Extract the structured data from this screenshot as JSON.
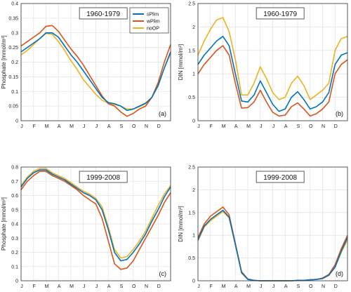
{
  "legend": {
    "entries": [
      "sPlim",
      "wPlim",
      "noOP"
    ]
  },
  "colors": {
    "sPlim": "#0072BD",
    "wPlim": "#D95319",
    "noOP": "#EDB120"
  },
  "chart_data": [
    {
      "type": "line",
      "panel_label": "(a)",
      "box_title": "1960-1979",
      "ylabel": "Phosphate [mmol/m³]",
      "ylim": [
        0,
        0.4
      ],
      "yticks": [
        "0",
        "0.05",
        "0.1",
        "0.15",
        "0.2",
        "0.25",
        "0.3",
        "0.35",
        "0.4"
      ],
      "xtick_labels": [
        "J",
        "F",
        "M",
        "A",
        "M",
        "J",
        "J",
        "A",
        "S",
        "O",
        "N",
        "D"
      ],
      "grid": true,
      "legend_position": "top-right",
      "x": [
        0,
        0.5,
        1,
        1.5,
        2,
        2.5,
        3,
        3.5,
        4,
        4.5,
        5,
        5.5,
        6,
        6.5,
        7,
        7.5,
        8,
        8.5,
        9,
        9.5,
        10,
        10.5,
        11,
        11.5,
        12
      ],
      "series": [
        {
          "name": "sPlim",
          "values": [
            0.235,
            0.25,
            0.265,
            0.28,
            0.3,
            0.3,
            0.285,
            0.255,
            0.225,
            0.2,
            0.17,
            0.14,
            0.11,
            0.08,
            0.062,
            0.058,
            0.05,
            0.035,
            0.04,
            0.05,
            0.06,
            0.08,
            0.12,
            0.18,
            0.235
          ]
        },
        {
          "name": "wPlim",
          "values": [
            0.255,
            0.27,
            0.285,
            0.3,
            0.322,
            0.325,
            0.305,
            0.275,
            0.245,
            0.22,
            0.19,
            0.155,
            0.12,
            0.085,
            0.058,
            0.05,
            0.03,
            0.015,
            0.025,
            0.04,
            0.05,
            0.08,
            0.13,
            0.2,
            0.26
          ]
        },
        {
          "name": "noOP",
          "values": [
            0.225,
            0.24,
            0.26,
            0.28,
            0.298,
            0.295,
            0.27,
            0.24,
            0.205,
            0.175,
            0.14,
            0.115,
            0.09,
            0.07,
            0.06,
            0.055,
            0.05,
            0.04,
            0.04,
            0.048,
            0.058,
            0.08,
            0.12,
            0.18,
            0.23
          ]
        }
      ]
    },
    {
      "type": "line",
      "panel_label": "(b)",
      "box_title": "1960-1979",
      "ylabel": "DIN [mmol/m³]",
      "ylim": [
        0,
        2.5
      ],
      "yticks": [
        "0",
        "0.5",
        "1",
        "1.5",
        "2",
        "2.5"
      ],
      "xtick_labels": [
        "J",
        "F",
        "M",
        "A",
        "M",
        "J",
        "J",
        "A",
        "S",
        "O",
        "N",
        "D"
      ],
      "grid": true,
      "x": [
        0,
        0.5,
        1,
        1.5,
        2,
        2.5,
        3,
        3.5,
        4,
        4.5,
        5,
        5.5,
        6,
        6.5,
        7,
        7.5,
        8,
        8.5,
        9,
        9.5,
        10,
        10.5,
        11,
        11.5,
        12
      ],
      "series": [
        {
          "name": "sPlim",
          "values": [
            1.2,
            1.4,
            1.55,
            1.7,
            1.8,
            1.6,
            1.0,
            0.42,
            0.4,
            0.55,
            0.85,
            0.6,
            0.35,
            0.2,
            0.25,
            0.5,
            0.62,
            0.45,
            0.25,
            0.3,
            0.4,
            0.6,
            1.2,
            1.4,
            1.45
          ]
        },
        {
          "name": "wPlim",
          "values": [
            1.0,
            1.2,
            1.35,
            1.5,
            1.6,
            1.4,
            0.8,
            0.27,
            0.28,
            0.4,
            0.65,
            0.4,
            0.18,
            0.1,
            0.12,
            0.3,
            0.38,
            0.25,
            0.1,
            0.15,
            0.25,
            0.4,
            1.0,
            1.2,
            1.3
          ]
        },
        {
          "name": "noOP",
          "values": [
            1.4,
            1.7,
            1.95,
            2.15,
            2.2,
            1.9,
            1.3,
            0.55,
            0.55,
            0.8,
            1.15,
            0.9,
            0.6,
            0.45,
            0.5,
            0.8,
            0.95,
            0.75,
            0.45,
            0.55,
            0.65,
            0.8,
            1.5,
            1.75,
            1.8
          ]
        }
      ]
    },
    {
      "type": "line",
      "panel_label": "(c)",
      "box_title": "1999-2008",
      "ylabel": "Phosphate [mmol/m³]",
      "ylim": [
        0,
        0.8
      ],
      "yticks": [
        "0",
        "0.1",
        "0.2",
        "0.3",
        "0.4",
        "0.5",
        "0.6",
        "0.7",
        "0.8"
      ],
      "xtick_labels": [
        "J",
        "F",
        "M",
        "A",
        "M",
        "J",
        "J",
        "A",
        "S",
        "O",
        "N",
        "D"
      ],
      "grid": true,
      "x": [
        0,
        0.5,
        1,
        1.5,
        2,
        2.5,
        3,
        3.5,
        4,
        4.5,
        5,
        5.5,
        6,
        6.5,
        7,
        7.5,
        8,
        8.5,
        9,
        9.5,
        10,
        10.5,
        11,
        11.5,
        12
      ],
      "series": [
        {
          "name": "sPlim",
          "values": [
            0.66,
            0.72,
            0.76,
            0.78,
            0.78,
            0.75,
            0.73,
            0.71,
            0.68,
            0.65,
            0.62,
            0.6,
            0.57,
            0.5,
            0.36,
            0.2,
            0.14,
            0.15,
            0.2,
            0.26,
            0.33,
            0.42,
            0.5,
            0.59,
            0.66
          ]
        },
        {
          "name": "wPlim",
          "values": [
            0.64,
            0.7,
            0.74,
            0.77,
            0.77,
            0.74,
            0.72,
            0.7,
            0.67,
            0.64,
            0.6,
            0.57,
            0.54,
            0.44,
            0.28,
            0.12,
            0.08,
            0.09,
            0.14,
            0.22,
            0.3,
            0.38,
            0.46,
            0.55,
            0.62
          ]
        },
        {
          "name": "noOP",
          "values": [
            0.67,
            0.73,
            0.77,
            0.79,
            0.79,
            0.76,
            0.74,
            0.72,
            0.69,
            0.66,
            0.63,
            0.61,
            0.58,
            0.52,
            0.38,
            0.22,
            0.16,
            0.17,
            0.22,
            0.28,
            0.35,
            0.44,
            0.53,
            0.61,
            0.67
          ]
        }
      ]
    },
    {
      "type": "line",
      "panel_label": "(d)",
      "box_title": "1999-2008",
      "ylabel": "DIN [mmol/m³]",
      "ylim": [
        0,
        2.5
      ],
      "yticks": [
        "0",
        "0.5",
        "1",
        "1.5",
        "2",
        "2.5"
      ],
      "xtick_labels": [
        "J",
        "F",
        "M",
        "A",
        "M",
        "J",
        "J",
        "A",
        "S",
        "O",
        "N",
        "D"
      ],
      "grid": true,
      "x": [
        0,
        0.5,
        1,
        1.5,
        2,
        2.5,
        3,
        3.5,
        4,
        4.5,
        5,
        5.5,
        6,
        6.5,
        7,
        7.5,
        8,
        8.5,
        9,
        9.5,
        10,
        10.5,
        11,
        11.5,
        12
      ],
      "series": [
        {
          "name": "sPlim",
          "values": [
            0.9,
            1.2,
            1.35,
            1.45,
            1.55,
            1.4,
            0.8,
            0.18,
            0.03,
            0.01,
            0.0,
            0.0,
            0.0,
            0.0,
            0.0,
            0.0,
            0.01,
            0.01,
            0.02,
            0.03,
            0.05,
            0.12,
            0.3,
            0.65,
            0.95
          ]
        },
        {
          "name": "wPlim",
          "values": [
            0.95,
            1.25,
            1.42,
            1.52,
            1.62,
            1.45,
            0.82,
            0.2,
            0.04,
            0.01,
            0.0,
            0.0,
            0.0,
            0.0,
            0.0,
            0.0,
            0.01,
            0.01,
            0.02,
            0.03,
            0.06,
            0.14,
            0.35,
            0.7,
            1.0
          ]
        },
        {
          "name": "noOP",
          "values": [
            0.88,
            1.18,
            1.32,
            1.42,
            1.52,
            1.38,
            0.78,
            0.17,
            0.03,
            0.01,
            0.0,
            0.0,
            0.0,
            0.0,
            0.0,
            0.0,
            0.01,
            0.01,
            0.02,
            0.03,
            0.05,
            0.12,
            0.3,
            0.62,
            0.9
          ]
        }
      ]
    }
  ]
}
